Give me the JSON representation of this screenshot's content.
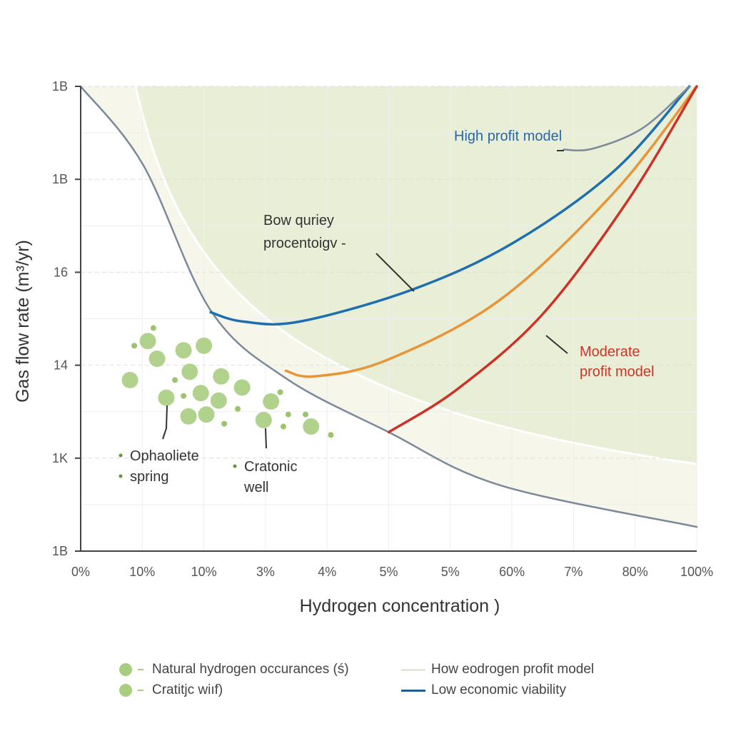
{
  "chart_data": {
    "type": "line",
    "xlabel": "Hydrogen concentration )",
    "ylabel": "Gas flow rate (m³/yr)",
    "x_tick_labels": [
      "0%",
      "10%",
      "10%",
      "3%",
      "4%",
      "5%",
      "5%",
      "60%",
      "7%",
      "80%",
      "100%"
    ],
    "y_tick_labels": [
      "1B",
      "1K",
      "14",
      "16",
      "1B",
      "1B"
    ],
    "note_units": "",
    "grid": true,
    "series": [
      {
        "key": "boundary",
        "color": "#7a8a9a",
        "points": [
          [
            0,
            5
          ],
          [
            1.01,
            4.16
          ],
          [
            2.11,
            2.59
          ],
          [
            3.33,
            1.86
          ],
          [
            5.0,
            1.28
          ],
          [
            6.8,
            0.71
          ],
          [
            10,
            0.26
          ]
        ]
      },
      {
        "key": "blue",
        "color": "#1f6fb0",
        "points": [
          [
            2.11,
            2.57
          ],
          [
            2.63,
            2.47
          ],
          [
            3.56,
            2.47
          ],
          [
            5.41,
            2.82
          ],
          [
            7.03,
            3.32
          ],
          [
            8.66,
            4.09
          ],
          [
            9.88,
            5
          ]
        ]
      },
      {
        "key": "high",
        "color": "#7a8a9a",
        "points": [
          [
            7.84,
            4.32
          ],
          [
            8.31,
            4.33
          ],
          [
            9.12,
            4.55
          ],
          [
            9.88,
            5
          ]
        ]
      },
      {
        "key": "orange",
        "color": "#e8953a",
        "points": [
          [
            3.33,
            1.94
          ],
          [
            3.79,
            1.88
          ],
          [
            4.95,
            2.05
          ],
          [
            6.8,
            2.7
          ],
          [
            8.66,
            3.86
          ],
          [
            10,
            5
          ]
        ]
      },
      {
        "key": "red",
        "color": "#cc3328",
        "points": [
          [
            5.0,
            1.28
          ],
          [
            6.11,
            1.74
          ],
          [
            7.5,
            2.55
          ],
          [
            8.89,
            3.78
          ],
          [
            10,
            5
          ]
        ]
      }
    ],
    "scatter": {
      "color": "#a9cd7f",
      "large": [
        [
          1.09,
          2.26
        ],
        [
          1.24,
          2.07
        ],
        [
          1.67,
          2.16
        ],
        [
          2.0,
          2.21
        ],
        [
          1.77,
          1.93
        ],
        [
          0.8,
          1.84
        ],
        [
          1.39,
          1.65
        ],
        [
          1.95,
          1.7
        ],
        [
          2.24,
          1.62
        ],
        [
          2.62,
          1.76
        ],
        [
          1.75,
          1.45
        ],
        [
          2.04,
          1.47
        ],
        [
          2.97,
          1.41
        ],
        [
          3.09,
          1.61
        ],
        [
          3.74,
          1.34
        ],
        [
          2.28,
          1.88
        ]
      ],
      "small": [
        [
          1.18,
          2.4
        ],
        [
          0.87,
          2.21
        ],
        [
          1.53,
          1.84
        ],
        [
          1.67,
          1.67
        ],
        [
          3.24,
          1.71
        ],
        [
          3.37,
          1.47
        ],
        [
          3.29,
          1.34
        ],
        [
          4.06,
          1.25
        ],
        [
          3.65,
          1.47
        ],
        [
          2.55,
          1.53
        ],
        [
          2.33,
          1.37
        ]
      ]
    },
    "annotations": {
      "high_profit": "High profit model",
      "bow_1": "Bow quriey",
      "bow_2": "procentoigv  -",
      "moderate_1": "Moderate",
      "moderate_2": "profit model",
      "ophiolite_1": "Ophaoliete",
      "ophiolite_2": "spring",
      "cratonic_1": "Cratonic",
      "cratonic_2": "well"
    },
    "legend": {
      "placement": "bottom",
      "items": [
        {
          "label": "Natural hydrogen occurances (ś)",
          "marker": "circle",
          "color": "#a9cd7f"
        },
        {
          "label": "Cratitjc wiıf)",
          "marker": "circle",
          "color": "#a9cd7f"
        },
        {
          "label": "How eodrogen profit model",
          "marker": "line",
          "color": "#dfe6d2"
        },
        {
          "label": "Low economic viability",
          "marker": "line",
          "color": "#1f5f95"
        }
      ]
    }
  }
}
